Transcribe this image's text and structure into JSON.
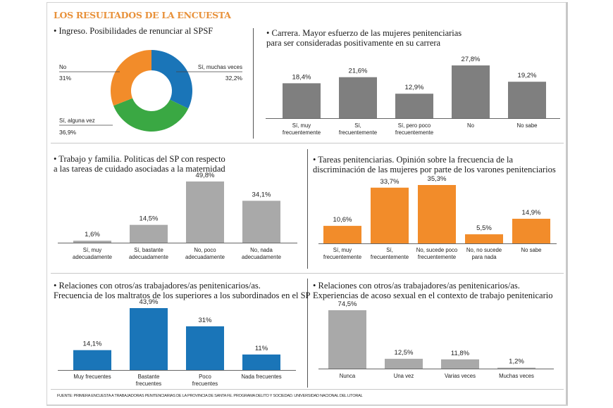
{
  "header": {
    "title": "LOS RESULTADOS DE LA ENCUESTA"
  },
  "source": "FUENTE: PRIMERA ENCUESTA A TRABAJADORAS PENITENCIARIAS DE LA PROVINCIA DE SANTA FE. PROGRAMA DELITO Y SOCIEDAD. UNIVERSIDAD NACIONAL DEL LITORAL",
  "colors": {
    "blue": "#1a75b8",
    "orange": "#f28c2a",
    "green": "#3aa843",
    "darkgray": "#7f7f7f",
    "lightgray": "#a9a9a9",
    "title": "#e8913a"
  },
  "chart_data": [
    {
      "id": "ingreso",
      "type": "pie",
      "title": "• Ingreso. Posibilidades de renunciar al SPSF",
      "categories": [
        "Sí, muchas veces",
        "Sí, alguna vez",
        "No"
      ],
      "values": [
        32.2,
        36.9,
        31
      ],
      "labels": [
        "32,2%",
        "36,9%",
        "31%"
      ],
      "colors": [
        "#1a75b8",
        "#3aa843",
        "#f28c2a"
      ],
      "donut": true
    },
    {
      "id": "carrera",
      "type": "bar",
      "title": "• Carrera. Mayor esfuerzo de las mujeres penitenciarias\npara ser consideradas positivamente en su carrera",
      "categories": [
        "Sí, muy\nfrecuentemente",
        "Sí,\nfrecuentemente",
        "Sí, pero poco\nfrecuentemente",
        "No",
        "No sabe"
      ],
      "values": [
        18.4,
        21.6,
        12.9,
        27.8,
        19.2
      ],
      "labels": [
        "18,4%",
        "21,6%",
        "12,9%",
        "27,8%",
        "19,2%"
      ],
      "color": "#7f7f7f",
      "ylim": [
        0,
        27.8
      ]
    },
    {
      "id": "familia",
      "type": "bar",
      "title": "• Trabajo y familia.  Politicas del SP con respecto\na las tareas de cuidado asociadas a la maternidad",
      "categories": [
        "Sí, muy\nadecuadamente",
        "Sí, bastante\nadecuadamente",
        "No, poco\nadecuadamente",
        "No, nada\nadecuadamente"
      ],
      "values": [
        1.6,
        14.5,
        49.8,
        34.1
      ],
      "labels": [
        "1,6%",
        "14,5%",
        "49,8%",
        "34,1%"
      ],
      "color": "#a9a9a9",
      "ylim": [
        0,
        49.8
      ]
    },
    {
      "id": "discriminacion",
      "type": "bar",
      "title": "• Tareas penitenciarias. Opinión sobre la frecuencia de la\ndiscriminación de las mujeres por parte de los varones penitenciarios",
      "categories": [
        "Sí, muy\nfrecuentemente",
        "Sí,\nfrecuentemente",
        "No, sucede poco\nfrecuentemente",
        "No, no sucede\npara nada",
        "No sabe"
      ],
      "values": [
        10.6,
        33.7,
        35.3,
        5.5,
        14.9
      ],
      "labels": [
        "10,6%",
        "33,7%",
        "35,3%",
        "5,5%",
        "14,9%"
      ],
      "color": "#f28c2a",
      "ylim": [
        0,
        35.3
      ]
    },
    {
      "id": "maltratos",
      "type": "bar",
      "title": "• Relaciones con otros/as trabajadores/as penitenicarios/as.\nFrecuencia de los maltratos de los superiores a los subordinados en el SP",
      "categories": [
        "Muy frecuentes",
        "Bastante\nfrecuentes",
        "Poco\nfrecuentes",
        "Nada frecuentes"
      ],
      "values": [
        14.1,
        43.9,
        31,
        11
      ],
      "labels": [
        "14,1%",
        "43,9%",
        "31%",
        "11%"
      ],
      "color": "#1a75b8",
      "ylim": [
        0,
        43.9
      ]
    },
    {
      "id": "acoso",
      "type": "bar",
      "title": "• Relaciones con otros/as trabajadores/as penitenicarios/as.\nExperiencias de acoso sexual en el contexto de trabajo penitenicario",
      "categories": [
        "Nunca",
        "Una vez",
        "Varias veces",
        "Muchas veces"
      ],
      "values": [
        74.5,
        12.5,
        11.8,
        1.2
      ],
      "labels": [
        "74,5%",
        "12,5%",
        "11,8%",
        "1,2%"
      ],
      "color": "#a9a9a9",
      "ylim": [
        0,
        74.5
      ]
    }
  ]
}
